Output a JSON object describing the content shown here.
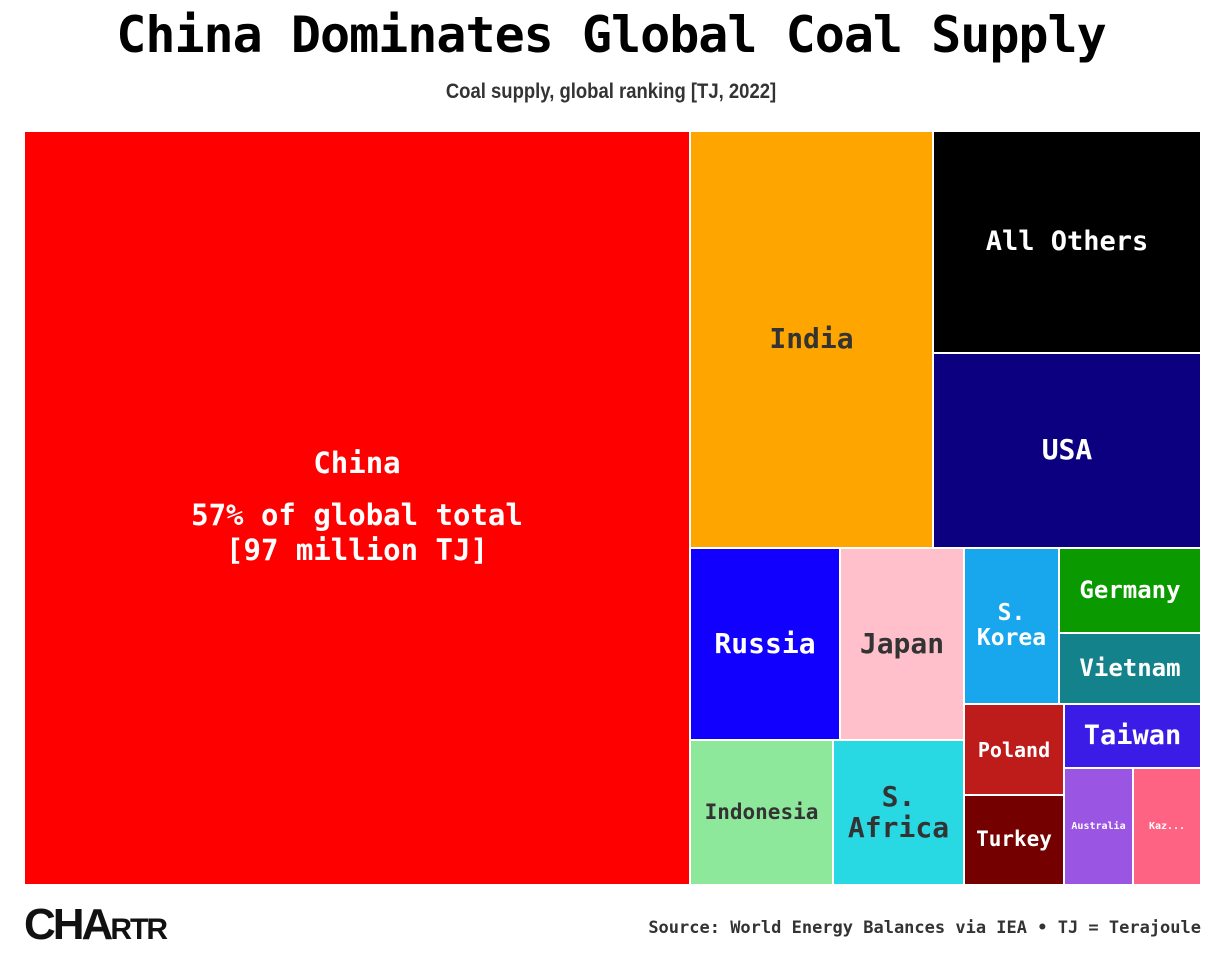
{
  "header": {
    "title": "China Dominates Global Coal Supply",
    "subtitle": "Coal supply, global ranking [TJ, 2022]"
  },
  "chart_data": {
    "type": "treemap",
    "title": "China Dominates Global Coal Supply",
    "subtitle": "Coal supply, global ranking [TJ, 2022]",
    "unit": "TJ",
    "tiles": [
      {
        "name": "China",
        "label": "China",
        "annotation": "57% of global total\n[97 million TJ]",
        "share_pct": 57,
        "value_tj": 97000000,
        "color": "#ff0000",
        "text_color": "#ffffff"
      },
      {
        "name": "India",
        "label": "India",
        "share_pct": 12.7,
        "color": "#ffa500",
        "text_color": "#333333"
      },
      {
        "name": "All Others",
        "label": "All Others",
        "share_pct": 5.1,
        "color": "#000000",
        "text_color": "#ffffff"
      },
      {
        "name": "USA",
        "label": "USA",
        "share_pct": 4.5,
        "color": "#0c0080",
        "text_color": "#ffffff"
      },
      {
        "name": "Russia",
        "label": "Russia",
        "share_pct": 3.4,
        "color": "#1200ff",
        "text_color": "#ffffff"
      },
      {
        "name": "Japan",
        "label": "Japan",
        "share_pct": 3.1,
        "color": "#ffc0cb",
        "text_color": "#333333"
      },
      {
        "name": "S. Korea",
        "label": "S.\nKorea",
        "share_pct": 1.8,
        "color": "#18a6ec",
        "text_color": "#ffffff"
      },
      {
        "name": "Germany",
        "label": "Germany",
        "share_pct": 1.4,
        "color": "#0b9900",
        "text_color": "#ffffff"
      },
      {
        "name": "Vietnam",
        "label": "Vietnam",
        "share_pct": 1.4,
        "color": "#14828a",
        "text_color": "#ffffff"
      },
      {
        "name": "Indonesia",
        "label": "Indonesia",
        "share_pct": 2.4,
        "color": "#8ee89c",
        "text_color": "#333333"
      },
      {
        "name": "S. Africa",
        "label": "S.\nAfrica",
        "share_pct": 2.2,
        "color": "#28d9e3",
        "text_color": "#333333"
      },
      {
        "name": "Poland",
        "label": "Poland",
        "share_pct": 1.2,
        "color": "#be1b1b",
        "text_color": "#ffffff"
      },
      {
        "name": "Turkey",
        "label": "Turkey",
        "share_pct": 1.1,
        "color": "#750000",
        "text_color": "#ffffff"
      },
      {
        "name": "Taiwan",
        "label": "Taiwan",
        "share_pct": 1.0,
        "color": "#3b1be6",
        "text_color": "#ffffff"
      },
      {
        "name": "Australia",
        "label": "Australia",
        "share_pct": 0.8,
        "color": "#9a55e3",
        "text_color": "#ffffff"
      },
      {
        "name": "Kazakhstan",
        "label": "Kaz...",
        "share_pct": 0.8,
        "color": "#ff6384",
        "text_color": "#ffffff"
      }
    ]
  },
  "footer": {
    "logo": "CHARTR",
    "logo_big": "CHA",
    "logo_small": "RTR",
    "source": "Source: World Energy Balances via IEA • TJ = Terajoule"
  }
}
